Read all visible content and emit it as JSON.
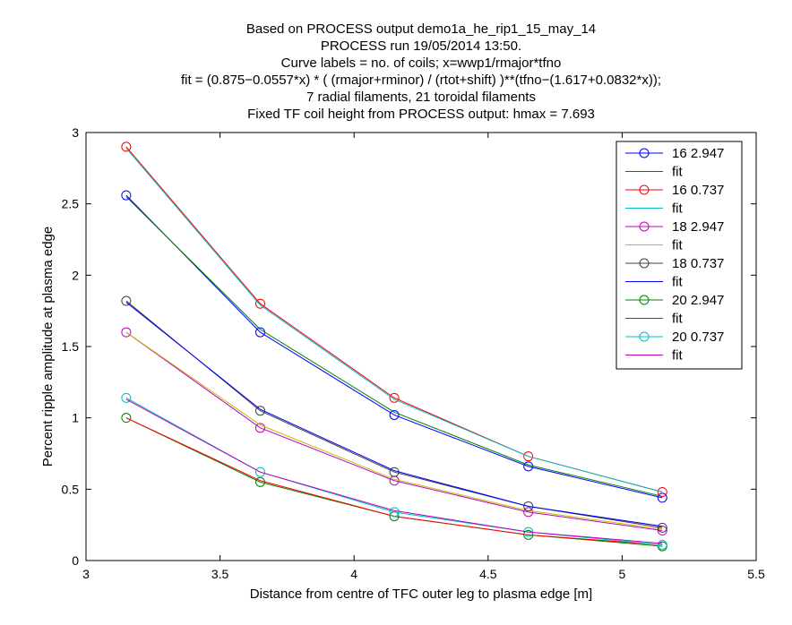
{
  "chart_data": {
    "type": "line",
    "title_lines": [
      "Based on PROCESS output demo1a_he_rip1_15_may_14",
      "PROCESS run 19/05/2014  13:50.",
      "Curve labels = no. of coils;  x=wwp1/rmajor*tfno",
      "fit = (0.875−0.0557*x) * ( (rmajor+rminor) / (rtot+shift) )**(tfno−(1.617+0.0832*x));",
      "7 radial filaments, 21 toroidal filaments",
      "Fixed TF coil height from PROCESS output: hmax = 7.693"
    ],
    "xlabel": "Distance from centre of TFC outer leg to plasma edge [m]",
    "ylabel": "Percent ripple amplitude at plasma edge",
    "xlim": [
      3,
      5.5
    ],
    "ylim": [
      0,
      3
    ],
    "xticks": [
      "3",
      "3.5",
      "4",
      "4.5",
      "5",
      "5.5"
    ],
    "yticks": [
      "0",
      "0.5",
      "1",
      "1.5",
      "2",
      "2.5",
      "3"
    ],
    "grid": false,
    "legend_position": "top-right",
    "x": [
      3.15,
      3.65,
      4.15,
      4.65,
      5.15
    ],
    "series": [
      {
        "name": "16  2.947",
        "color": "#0000ff",
        "marker": "circle",
        "values": [
          2.56,
          1.6,
          1.02,
          0.66,
          0.44
        ]
      },
      {
        "name": "fit",
        "color": "#008000",
        "marker": "none",
        "values": [
          2.55,
          1.62,
          1.04,
          0.67,
          0.45
        ]
      },
      {
        "name": "16  0.737",
        "color": "#ff0000",
        "marker": "circle",
        "values": [
          2.9,
          1.8,
          1.14,
          0.73,
          0.48
        ]
      },
      {
        "name": "fit",
        "color": "#00bfbf",
        "marker": "none",
        "values": [
          2.89,
          1.79,
          1.13,
          0.73,
          0.48
        ]
      },
      {
        "name": "18  2.947",
        "color": "#bf00bf",
        "marker": "circle",
        "values": [
          1.6,
          0.93,
          0.56,
          0.34,
          0.21
        ]
      },
      {
        "name": "fit",
        "color": "#bfbf00",
        "marker": "none",
        "values": [
          1.6,
          0.95,
          0.57,
          0.35,
          0.22
        ]
      },
      {
        "name": "18  0.737",
        "color": "#404040",
        "marker": "circle",
        "values": [
          1.82,
          1.05,
          0.62,
          0.38,
          0.23
        ]
      },
      {
        "name": "fit",
        "color": "#0000ff",
        "marker": "none",
        "values": [
          1.81,
          1.06,
          0.63,
          0.38,
          0.24
        ]
      },
      {
        "name": "20  2.947",
        "color": "#008000",
        "marker": "circle",
        "values": [
          1.0,
          0.55,
          0.31,
          0.18,
          0.1
        ]
      },
      {
        "name": "fit",
        "color": "#ff0000",
        "marker": "none",
        "values": [
          1.0,
          0.56,
          0.31,
          0.18,
          0.11
        ]
      },
      {
        "name": "20  0.737",
        "color": "#00bfbf",
        "marker": "circle",
        "values": [
          1.14,
          0.62,
          0.34,
          0.2,
          0.11
        ]
      },
      {
        "name": "fit",
        "color": "#bf00bf",
        "marker": "none",
        "values": [
          1.13,
          0.62,
          0.35,
          0.2,
          0.12
        ]
      }
    ]
  }
}
